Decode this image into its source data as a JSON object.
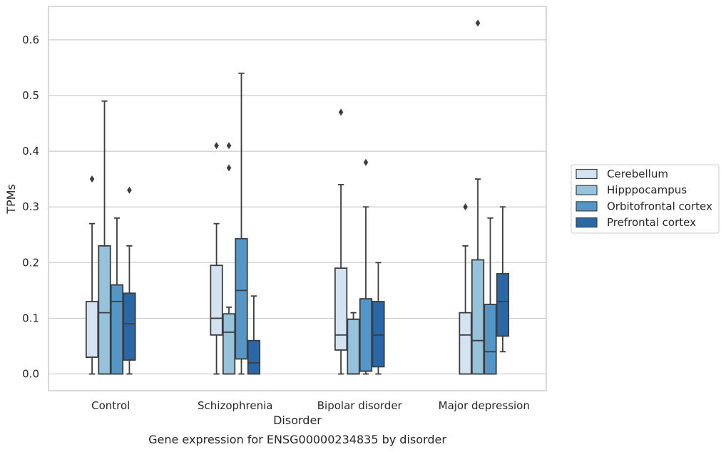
{
  "caption": "Gene expression for ENSG00000234835 by disorder",
  "chart_data": {
    "type": "box",
    "xlabel": "Disorder",
    "ylabel": "TPMs",
    "ylim": [
      -0.03,
      0.66
    ],
    "yticks": [
      "0.0",
      "0.1",
      "0.2",
      "0.3",
      "0.4",
      "0.5",
      "0.6"
    ],
    "ytick_values": [
      0.0,
      0.1,
      0.2,
      0.3,
      0.4,
      0.5,
      0.6
    ],
    "categories": [
      "Control",
      "Schizophrenia",
      "Bipolar disorder",
      "Major depression"
    ],
    "grid": "horizontal",
    "legend_position": "right",
    "series": [
      {
        "name": "Cerebellum",
        "color": "#d4e3f1",
        "boxes": [
          {
            "whislo": 0.0,
            "q1": 0.03,
            "med": 0.03,
            "q3": 0.13,
            "whishi": 0.27,
            "fliers": [
              0.35
            ]
          },
          {
            "whislo": 0.0,
            "q1": 0.07,
            "med": 0.1,
            "q3": 0.195,
            "whishi": 0.27,
            "fliers": [
              0.41
            ]
          },
          {
            "whislo": 0.0,
            "q1": 0.043,
            "med": 0.07,
            "q3": 0.19,
            "whishi": 0.34,
            "fliers": [
              0.47
            ]
          },
          {
            "whislo": 0.0,
            "q1": 0.0,
            "med": 0.07,
            "q3": 0.11,
            "whishi": 0.23,
            "fliers": [
              0.3
            ]
          }
        ]
      },
      {
        "name": "Hipppocampus",
        "color": "#96c2dc",
        "boxes": [
          {
            "whislo": 0.0,
            "q1": 0.0,
            "med": 0.11,
            "q3": 0.23,
            "whishi": 0.49,
            "fliers": []
          },
          {
            "whislo": 0.0,
            "q1": 0.0,
            "med": 0.075,
            "q3": 0.108,
            "whishi": 0.12,
            "fliers": [
              0.41,
              0.37
            ]
          },
          {
            "whislo": 0.0,
            "q1": 0.0,
            "med": 0.0,
            "q3": 0.098,
            "whishi": 0.11,
            "fliers": []
          },
          {
            "whislo": 0.0,
            "q1": 0.0,
            "med": 0.06,
            "q3": 0.205,
            "whishi": 0.35,
            "fliers": [
              0.63
            ]
          }
        ]
      },
      {
        "name": "Orbitofrontal cortex",
        "color": "#5496c8",
        "boxes": [
          {
            "whislo": 0.0,
            "q1": 0.0,
            "med": 0.13,
            "q3": 0.16,
            "whishi": 0.28,
            "fliers": []
          },
          {
            "whislo": 0.0,
            "q1": 0.027,
            "med": 0.15,
            "q3": 0.243,
            "whishi": 0.54,
            "fliers": []
          },
          {
            "whislo": 0.0,
            "q1": 0.005,
            "med": 0.005,
            "q3": 0.135,
            "whishi": 0.3,
            "fliers": [
              0.38
            ]
          },
          {
            "whislo": 0.0,
            "q1": 0.0,
            "med": 0.04,
            "q3": 0.125,
            "whishi": 0.28,
            "fliers": []
          }
        ]
      },
      {
        "name": "Prefrontal cortex",
        "color": "#2967a6",
        "boxes": [
          {
            "whislo": 0.0,
            "q1": 0.025,
            "med": 0.09,
            "q3": 0.145,
            "whishi": 0.23,
            "fliers": [
              0.33
            ]
          },
          {
            "whislo": 0.0,
            "q1": 0.0,
            "med": 0.02,
            "q3": 0.06,
            "whishi": 0.14,
            "fliers": []
          },
          {
            "whislo": 0.0,
            "q1": 0.013,
            "med": 0.07,
            "q3": 0.13,
            "whishi": 0.2,
            "fliers": []
          },
          {
            "whislo": 0.04,
            "q1": 0.068,
            "med": 0.13,
            "q3": 0.18,
            "whishi": 0.3,
            "fliers": []
          }
        ]
      }
    ]
  }
}
